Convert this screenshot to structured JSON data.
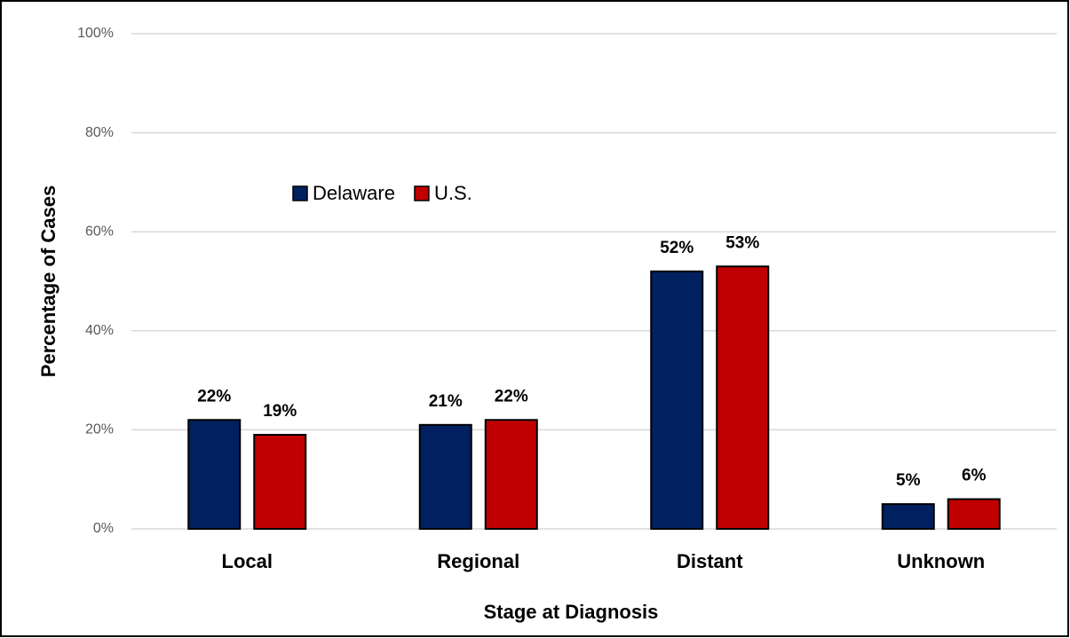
{
  "chart_data": {
    "type": "bar",
    "categories": [
      "Local",
      "Regional",
      "Distant",
      "Unknown"
    ],
    "series": [
      {
        "name": "Delaware",
        "color": "#002060",
        "values": [
          22,
          21,
          52,
          5
        ],
        "value_labels": [
          "22%",
          "21%",
          "52%",
          "5%"
        ]
      },
      {
        "name": "U.S.",
        "color": "#c00000",
        "values": [
          19,
          22,
          53,
          6
        ],
        "value_labels": [
          "19%",
          "22%",
          "53%",
          "6%"
        ]
      }
    ],
    "x_label": "Stage at Diagnosis",
    "y_label": "Percentage of Cases",
    "ylim": [
      0,
      100
    ],
    "yticks": [
      {
        "value": 0,
        "label": "0%"
      },
      {
        "value": 20,
        "label": "20%"
      },
      {
        "value": 40,
        "label": "40%"
      },
      {
        "value": 60,
        "label": "60%"
      },
      {
        "value": 80,
        "label": "80%"
      },
      {
        "value": 100,
        "label": "100%"
      }
    ],
    "grid": true,
    "legend": "upper left"
  }
}
